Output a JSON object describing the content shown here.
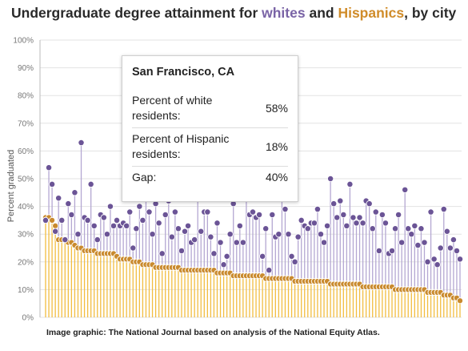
{
  "title": {
    "prefix": "Undergraduate degree attainment for ",
    "white_word": "whites",
    "middle": " and ",
    "hispanic_word": "Hispanics",
    "suffix": ", by city"
  },
  "tooltip": {
    "city": "San Francisco, CA",
    "rows": [
      {
        "label": "Percent of white residents:",
        "value": "58%"
      },
      {
        "label": "Percent of Hispanic residents:",
        "value": "18%"
      },
      {
        "label": "Gap:",
        "value": "40%"
      }
    ]
  },
  "source": "Image graphic: The National Journal based on analysis of the National Equity Atlas.",
  "colors": {
    "white_series": "#6b5496",
    "white_line": "#b4a7d2",
    "hispanic_series": "#c98a2e",
    "hispanic_line": "#f2bd40",
    "grid": "#e3e3e3"
  },
  "chart_data": {
    "type": "scatter",
    "title": "Undergraduate degree attainment for whites and Hispanics, by city",
    "ylabel": "Percent graduated",
    "xlabel": "",
    "ylim": [
      0,
      100
    ],
    "yticks": [
      "0%",
      "10%",
      "20%",
      "30%",
      "40%",
      "50%",
      "60%",
      "70%",
      "80%",
      "90%",
      "100%"
    ],
    "grid": true,
    "sort": "cities ordered by Hispanic attainment, descending",
    "series": [
      {
        "name": "whites",
        "values": [
          35,
          54,
          48,
          31,
          43,
          35,
          28,
          41,
          37,
          45,
          30,
          63,
          36,
          35,
          48,
          33,
          28,
          37,
          36,
          30,
          40,
          33,
          35,
          33,
          34,
          33,
          38,
          25,
          32,
          40,
          35,
          47,
          38,
          30,
          41,
          34,
          23,
          37,
          42,
          29,
          38,
          32,
          24,
          31,
          33,
          27,
          28,
          44,
          31,
          38,
          38,
          29,
          23,
          34,
          27,
          19,
          22,
          30,
          41,
          27,
          33,
          27,
          45,
          37,
          38,
          36,
          37,
          22,
          32,
          17,
          37,
          29,
          30,
          50,
          39,
          30,
          22,
          20,
          29,
          35,
          33,
          32,
          34,
          34,
          39,
          30,
          27,
          33,
          50,
          41,
          36,
          42,
          37,
          33,
          48,
          36,
          34,
          36,
          34,
          42,
          41,
          32,
          38,
          24,
          37,
          34,
          23,
          24,
          32,
          37,
          27,
          46,
          32,
          30,
          33,
          26,
          32,
          27,
          20,
          38,
          21,
          19,
          25,
          39,
          31,
          25,
          28,
          24,
          21
        ]
      },
      {
        "name": "Hispanics",
        "values": [
          36,
          36,
          35,
          33,
          28,
          28,
          28,
          27,
          27,
          26,
          25,
          25,
          24,
          24,
          24,
          24,
          23,
          23,
          23,
          23,
          23,
          23,
          22,
          21,
          21,
          21,
          21,
          20,
          20,
          20,
          19,
          19,
          19,
          19,
          18,
          18,
          18,
          18,
          18,
          18,
          18,
          18,
          17,
          17,
          17,
          17,
          17,
          17,
          17,
          17,
          17,
          17,
          17,
          16,
          16,
          16,
          16,
          16,
          15,
          15,
          15,
          15,
          15,
          15,
          15,
          15,
          15,
          15,
          14,
          14,
          14,
          14,
          14,
          14,
          14,
          14,
          14,
          13,
          13,
          13,
          13,
          13,
          13,
          13,
          13,
          13,
          13,
          13,
          12,
          12,
          12,
          12,
          12,
          12,
          12,
          12,
          12,
          12,
          11,
          11,
          11,
          11,
          11,
          11,
          11,
          11,
          11,
          11,
          10,
          10,
          10,
          10,
          10,
          10,
          10,
          10,
          10,
          10,
          9,
          9,
          9,
          9,
          9,
          8,
          8,
          8,
          7,
          7,
          6
        ]
      }
    ]
  }
}
